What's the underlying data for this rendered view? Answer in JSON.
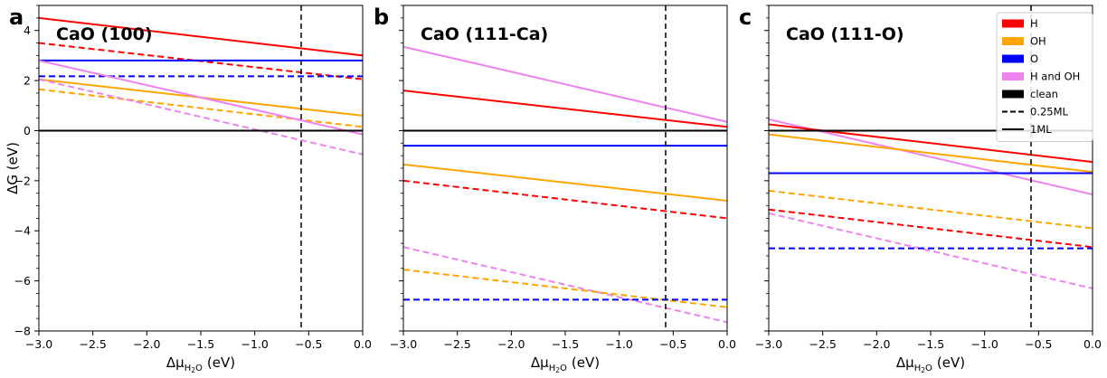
{
  "legend": [
    {
      "label": "H",
      "swatch": "#ff0000",
      "kind": "patch"
    },
    {
      "label": "OH",
      "swatch": "#ffa500",
      "kind": "patch"
    },
    {
      "label": "O",
      "swatch": "#0000ff",
      "kind": "patch"
    },
    {
      "label": "H and OH",
      "swatch": "#ee82ee",
      "kind": "patch"
    },
    {
      "label": "clean",
      "swatch": "#000000",
      "kind": "patch"
    },
    {
      "label": "0.25ML",
      "swatch": "#000000",
      "kind": "dashed"
    },
    {
      "label": "1ML",
      "swatch": "#000000",
      "kind": "solid"
    }
  ],
  "colors": {
    "H": "#ff0000",
    "OH": "#ffa500",
    "O": "#0000ff",
    "H and OH": "#ee82ee",
    "clean": "#000000"
  },
  "chart_data": [
    {
      "type": "line",
      "panel_letter": "a",
      "title": "CaO (100)",
      "xlabel_main": "Δμ",
      "xlabel_sub": "H",
      "xlabel_sub2": "2",
      "xlabel_sub3": "O",
      "xlabel_unit": "(eV)",
      "ylabel": "ΔG (eV)",
      "xlim": [
        -3.0,
        0.0
      ],
      "ylim": [
        -8,
        5
      ],
      "xticks": [
        "−3.0",
        "−2.5",
        "−2.0",
        "−1.5",
        "−1.0",
        "−0.5",
        "0.0"
      ],
      "yticks": [
        "−8",
        "−6",
        "−4",
        "−2",
        "0",
        "2",
        "4"
      ],
      "show_y_labels": true,
      "vline_x": -0.57,
      "series": [
        {
          "species": "H",
          "coverage": "1ML",
          "x": [
            -3.0,
            0.0
          ],
          "y": [
            4.5,
            3.0
          ]
        },
        {
          "species": "H",
          "coverage": "0.25ML",
          "x": [
            -3.0,
            0.0
          ],
          "y": [
            3.5,
            2.05
          ]
        },
        {
          "species": "O",
          "coverage": "1ML",
          "x": [
            -3.0,
            0.0
          ],
          "y": [
            2.8,
            2.8
          ]
        },
        {
          "species": "O",
          "coverage": "0.25ML",
          "x": [
            -3.0,
            0.0
          ],
          "y": [
            2.17,
            2.17
          ]
        },
        {
          "species": "OH",
          "coverage": "1ML",
          "x": [
            -3.0,
            0.0
          ],
          "y": [
            2.05,
            0.6
          ]
        },
        {
          "species": "OH",
          "coverage": "0.25ML",
          "x": [
            -3.0,
            0.0
          ],
          "y": [
            1.65,
            0.15
          ]
        },
        {
          "species": "H and OH",
          "coverage": "1ML",
          "x": [
            -3.0,
            0.0
          ],
          "y": [
            2.8,
            -0.15
          ]
        },
        {
          "species": "H and OH",
          "coverage": "0.25ML",
          "x": [
            -3.0,
            0.0
          ],
          "y": [
            2.05,
            -0.95
          ]
        },
        {
          "species": "clean",
          "coverage": "1ML",
          "x": [
            -3.0,
            0.0
          ],
          "y": [
            0.0,
            0.0
          ]
        }
      ]
    },
    {
      "type": "line",
      "panel_letter": "b",
      "title": "CaO (111-Ca)",
      "xlabel_main": "Δμ",
      "xlabel_sub": "H",
      "xlabel_sub2": "2",
      "xlabel_sub3": "O",
      "xlabel_unit": "(eV)",
      "ylabel": "",
      "xlim": [
        -3.0,
        0.0
      ],
      "ylim": [
        -8,
        5
      ],
      "xticks": [
        "−3.0",
        "−2.5",
        "−2.0",
        "−1.5",
        "−1.0",
        "−0.5",
        "0.0"
      ],
      "yticks": [],
      "show_y_labels": false,
      "vline_x": -0.57,
      "series": [
        {
          "species": "H and OH",
          "coverage": "1ML",
          "x": [
            -3.0,
            0.0
          ],
          "y": [
            3.35,
            0.35
          ]
        },
        {
          "species": "H",
          "coverage": "1ML",
          "x": [
            -3.0,
            0.0
          ],
          "y": [
            1.6,
            0.15
          ]
        },
        {
          "species": "clean",
          "coverage": "1ML",
          "x": [
            -3.0,
            0.0
          ],
          "y": [
            0.0,
            0.0
          ]
        },
        {
          "species": "O",
          "coverage": "1ML",
          "x": [
            -3.0,
            0.0
          ],
          "y": [
            -0.6,
            -0.6
          ]
        },
        {
          "species": "OH",
          "coverage": "1ML",
          "x": [
            -3.0,
            0.0
          ],
          "y": [
            -1.35,
            -2.8
          ]
        },
        {
          "species": "H",
          "coverage": "0.25ML",
          "x": [
            -3.0,
            0.0
          ],
          "y": [
            -2.0,
            -3.5
          ]
        },
        {
          "species": "H and OH",
          "coverage": "0.25ML",
          "x": [
            -3.0,
            0.0
          ],
          "y": [
            -4.65,
            -7.65
          ]
        },
        {
          "species": "OH",
          "coverage": "0.25ML",
          "x": [
            -3.0,
            0.0
          ],
          "y": [
            -5.55,
            -7.05
          ]
        },
        {
          "species": "O",
          "coverage": "0.25ML",
          "x": [
            -3.0,
            0.0
          ],
          "y": [
            -6.75,
            -6.75
          ]
        }
      ]
    },
    {
      "type": "line",
      "panel_letter": "c",
      "title": "CaO (111-O)",
      "xlabel_main": "Δμ",
      "xlabel_sub": "H",
      "xlabel_sub2": "2",
      "xlabel_sub3": "O",
      "xlabel_unit": "(eV)",
      "ylabel": "",
      "xlim": [
        -3.0,
        0.0
      ],
      "ylim": [
        -8,
        5
      ],
      "xticks": [
        "−3.0",
        "−2.5",
        "−2.0",
        "−1.5",
        "−1.0",
        "−0.5",
        "0.0"
      ],
      "yticks": [],
      "show_y_labels": false,
      "vline_x": -0.57,
      "series": [
        {
          "species": "H and OH",
          "coverage": "1ML",
          "x": [
            -3.0,
            0.0
          ],
          "y": [
            0.45,
            -2.55
          ]
        },
        {
          "species": "H",
          "coverage": "1ML",
          "x": [
            -3.0,
            0.0
          ],
          "y": [
            0.25,
            -1.25
          ]
        },
        {
          "species": "clean",
          "coverage": "1ML",
          "x": [
            -3.0,
            0.0
          ],
          "y": [
            0.0,
            0.0
          ]
        },
        {
          "species": "OH",
          "coverage": "1ML",
          "x": [
            -3.0,
            0.0
          ],
          "y": [
            -0.15,
            -1.65
          ]
        },
        {
          "species": "O",
          "coverage": "1ML",
          "x": [
            -3.0,
            0.0
          ],
          "y": [
            -1.7,
            -1.7
          ]
        },
        {
          "species": "OH",
          "coverage": "0.25ML",
          "x": [
            -3.0,
            0.0
          ],
          "y": [
            -2.4,
            -3.9
          ]
        },
        {
          "species": "H",
          "coverage": "0.25ML",
          "x": [
            -3.0,
            0.0
          ],
          "y": [
            -3.15,
            -4.65
          ]
        },
        {
          "species": "H and OH",
          "coverage": "0.25ML",
          "x": [
            -3.0,
            0.0
          ],
          "y": [
            -3.3,
            -6.3
          ]
        },
        {
          "species": "O",
          "coverage": "0.25ML",
          "x": [
            -3.0,
            0.0
          ],
          "y": [
            -4.7,
            -4.7
          ]
        }
      ]
    }
  ]
}
